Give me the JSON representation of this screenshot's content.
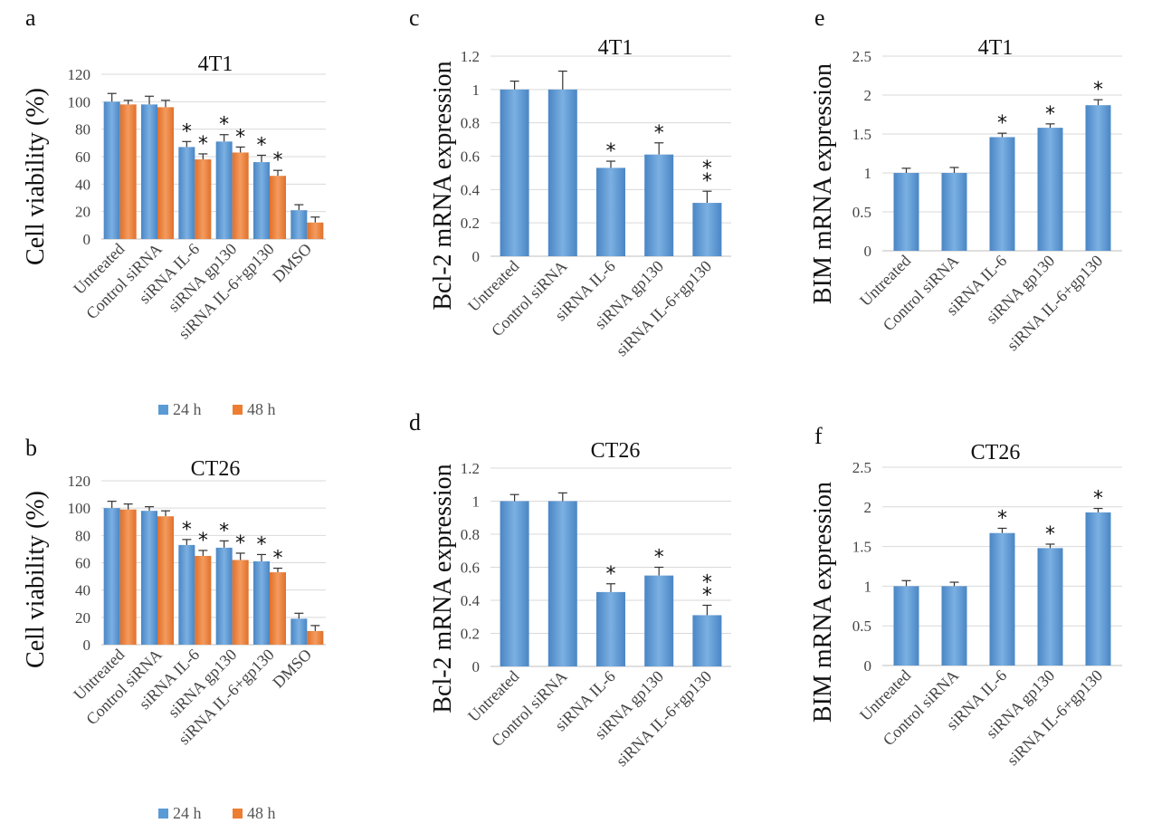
{
  "chart_data": [
    {
      "panel": "a",
      "type": "bar",
      "title": "4T1",
      "ylabel": "Cell viability (%)",
      "xlabel": "",
      "ylim": [
        0,
        120
      ],
      "yticks": [
        "0",
        "20",
        "40",
        "60",
        "80",
        "100",
        "120"
      ],
      "categories": [
        "Untreated",
        "Control siRNA",
        "siRNA IL-6",
        "siRNA gp130",
        "siRNA IL-6+gp130",
        "DMSO"
      ],
      "series": [
        {
          "name": "24 h",
          "color": "#5b9bd5",
          "values": [
            100,
            98,
            67,
            71,
            56,
            21
          ],
          "errors": [
            6,
            6,
            4,
            5,
            5,
            4
          ],
          "stars": [
            "",
            "",
            "*",
            "*",
            "*",
            ""
          ]
        },
        {
          "name": "48 h",
          "color": "#ed7d31",
          "values": [
            98,
            96,
            58,
            63,
            46,
            12
          ],
          "errors": [
            3,
            5,
            4,
            4,
            4,
            4
          ],
          "stars": [
            "",
            "",
            "*",
            "*",
            "*",
            ""
          ]
        }
      ],
      "legend": [
        {
          "label": "24 h",
          "color": "#5b9bd5"
        },
        {
          "label": "48 h",
          "color": "#ed7d31"
        }
      ]
    },
    {
      "panel": "b",
      "type": "bar",
      "title": "CT26",
      "ylabel": "Cell viability (%)",
      "xlabel": "",
      "ylim": [
        0,
        120
      ],
      "yticks": [
        "0",
        "20",
        "40",
        "60",
        "80",
        "100",
        "120"
      ],
      "categories": [
        "Untreated",
        "Control siRNA",
        "siRNA IL-6",
        "siRNA gp130",
        "siRNA IL-6+gp130",
        "DMSO"
      ],
      "series": [
        {
          "name": "24 h",
          "color": "#5b9bd5",
          "values": [
            100,
            98,
            73,
            71,
            61,
            19
          ],
          "errors": [
            5,
            3,
            4,
            5,
            5,
            4
          ],
          "stars": [
            "",
            "",
            "*",
            "*",
            "*",
            ""
          ]
        },
        {
          "name": "48 h",
          "color": "#ed7d31",
          "values": [
            99,
            94,
            65,
            62,
            53,
            10
          ],
          "errors": [
            4,
            4,
            4,
            5,
            3,
            4
          ],
          "stars": [
            "",
            "",
            "*",
            "*",
            "*",
            ""
          ]
        }
      ],
      "legend": [
        {
          "label": "24 h",
          "color": "#5b9bd5"
        },
        {
          "label": "48 h",
          "color": "#ed7d31"
        }
      ]
    },
    {
      "panel": "c",
      "type": "bar",
      "title": "4T1",
      "ylabel": "Bcl-2 mRNA expression",
      "xlabel": "",
      "ylim": [
        0,
        1.2
      ],
      "yticks": [
        "0",
        "0.2",
        "0.4",
        "0.6",
        "0.8",
        "1",
        "1.2"
      ],
      "categories": [
        "Untreated",
        "Control siRNA",
        "siRNA IL-6",
        "siRNA gp130",
        "siRNA IL-6+gp130"
      ],
      "series": [
        {
          "name": "expression",
          "color": "#5b9bd5",
          "values": [
            1.0,
            1.0,
            0.53,
            0.61,
            0.32
          ],
          "errors": [
            0.05,
            0.11,
            0.04,
            0.07,
            0.07
          ],
          "stars": [
            "",
            "",
            "*",
            "*",
            "**"
          ]
        }
      ]
    },
    {
      "panel": "d",
      "type": "bar",
      "title": "CT26",
      "ylabel": "Bcl-2 mRNA expression",
      "xlabel": "",
      "ylim": [
        0,
        1.2
      ],
      "yticks": [
        "0",
        "0.2",
        "0.4",
        "0.6",
        "0.8",
        "1",
        "1.2"
      ],
      "categories": [
        "Untreated",
        "Control siRNA",
        "siRNA IL-6",
        "siRNA gp130",
        "siRNA IL-6+gp130"
      ],
      "series": [
        {
          "name": "expression",
          "color": "#5b9bd5",
          "values": [
            1.0,
            1.0,
            0.45,
            0.55,
            0.31
          ],
          "errors": [
            0.04,
            0.05,
            0.05,
            0.05,
            0.06
          ],
          "stars": [
            "",
            "",
            "*",
            "*",
            "**"
          ]
        }
      ]
    },
    {
      "panel": "e",
      "type": "bar",
      "title": "4T1",
      "ylabel": "BIM mRNA expression",
      "xlabel": "",
      "ylim": [
        0,
        2.5
      ],
      "yticks": [
        "0",
        "0.5",
        "1",
        "1.5",
        "2",
        "2.5"
      ],
      "categories": [
        "Untreated",
        "Control siRNA",
        "siRNA IL-6",
        "siRNA gp130",
        "siRNA IL-6+gp130"
      ],
      "series": [
        {
          "name": "expression",
          "color": "#5b9bd5",
          "values": [
            1.0,
            1.0,
            1.46,
            1.58,
            1.87
          ],
          "errors": [
            0.06,
            0.07,
            0.05,
            0.05,
            0.07
          ],
          "stars": [
            "",
            "",
            "*",
            "*",
            "*"
          ]
        }
      ]
    },
    {
      "panel": "f",
      "type": "bar",
      "title": "CT26",
      "ylabel": "BIM mRNA expression",
      "xlabel": "",
      "ylim": [
        0,
        2.5
      ],
      "yticks": [
        "0",
        "0.5",
        "1",
        "1.5",
        "2",
        "2.5"
      ],
      "categories": [
        "Untreated",
        "Control siRNA",
        "siRNA IL-6",
        "siRNA gp130",
        "siRNA IL-6+gp130"
      ],
      "series": [
        {
          "name": "expression",
          "color": "#5b9bd5",
          "values": [
            1.0,
            1.0,
            1.67,
            1.48,
            1.93
          ],
          "errors": [
            0.07,
            0.05,
            0.06,
            0.05,
            0.05
          ],
          "stars": [
            "",
            "",
            "*",
            "*",
            "*"
          ]
        }
      ]
    }
  ]
}
